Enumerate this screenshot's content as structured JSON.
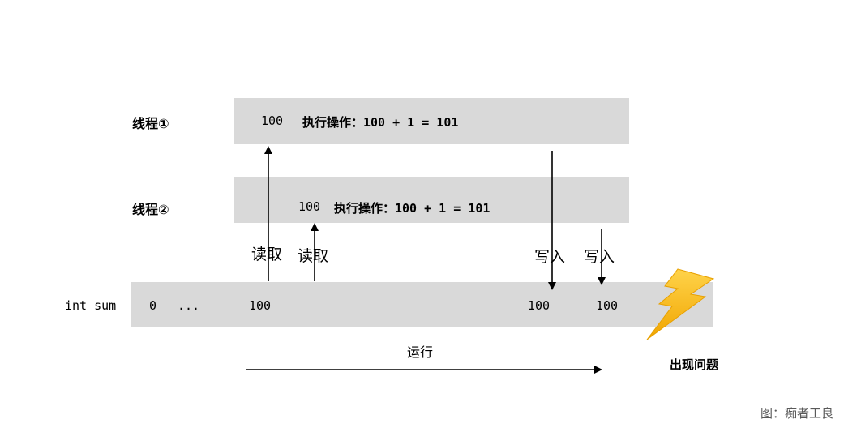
{
  "thread1": {
    "label": "线程①",
    "value": "100",
    "op": "执行操作：100 + 1 = 101"
  },
  "thread2": {
    "label": "线程②",
    "value": "100",
    "op": "执行操作：100 + 1 = 101"
  },
  "sum": {
    "label": "int sum",
    "v0": "0",
    "ellipsis": "...",
    "v1": "100",
    "v2": "100",
    "v3": "100"
  },
  "actions": {
    "read1": "读取",
    "read2": "读取",
    "write1": "写入",
    "write2": "写入"
  },
  "timeline": {
    "label": "运行"
  },
  "problem": {
    "label": "出现问题"
  },
  "caption": "图：痴者工良",
  "colors": {
    "bar": "#d9d9d9",
    "bolt_top": "#ffd34a",
    "bolt_bottom": "#f0a500"
  },
  "icons": {
    "problem_icon": "lightning-bolt-icon"
  }
}
